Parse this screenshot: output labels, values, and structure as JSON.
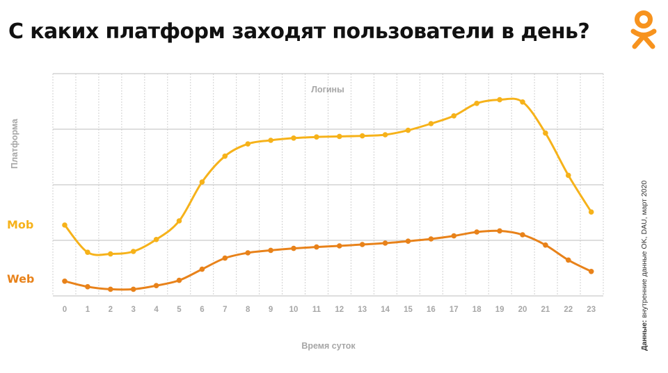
{
  "title": "С каких платформ заходят пользователи в день?",
  "source": {
    "label": "Данные:",
    "text": "внутренние данные OK, DAU, март 2020"
  },
  "logo_icon": "odnoklassniki-icon",
  "colors": {
    "mob": "#f6b21a",
    "web": "#e8821a",
    "accent": "#f7931e",
    "grid": "#cfcfcf",
    "label": "#a6a6a6"
  },
  "chart_data": {
    "type": "line",
    "title": "Логины",
    "xlabel": "Время суток",
    "ylabel": "Платформа",
    "x": [
      "0",
      "1",
      "2",
      "3",
      "4",
      "5",
      "6",
      "7",
      "8",
      "9",
      "10",
      "11",
      "12",
      "13",
      "14",
      "15",
      "16",
      "17",
      "18",
      "19",
      "20",
      "21",
      "22",
      "23"
    ],
    "series": [
      {
        "name": "Mob",
        "values": [
          2.55,
          1.57,
          1.51,
          1.6,
          2.03,
          2.7,
          4.1,
          5.03,
          5.47,
          5.6,
          5.68,
          5.72,
          5.74,
          5.76,
          5.8,
          5.96,
          6.2,
          6.48,
          6.93,
          7.06,
          6.98,
          5.86,
          4.34,
          3.02
        ],
        "color": "#f6b21a"
      },
      {
        "name": "Web",
        "values": [
          0.53,
          0.33,
          0.24,
          0.24,
          0.37,
          0.56,
          0.96,
          1.36,
          1.55,
          1.64,
          1.71,
          1.76,
          1.8,
          1.85,
          1.9,
          1.97,
          2.05,
          2.16,
          2.3,
          2.34,
          2.2,
          1.83,
          1.29,
          0.88
        ]
      }
    ],
    "ylim": [
      0,
      8
    ],
    "grid": true,
    "legend": "left"
  }
}
